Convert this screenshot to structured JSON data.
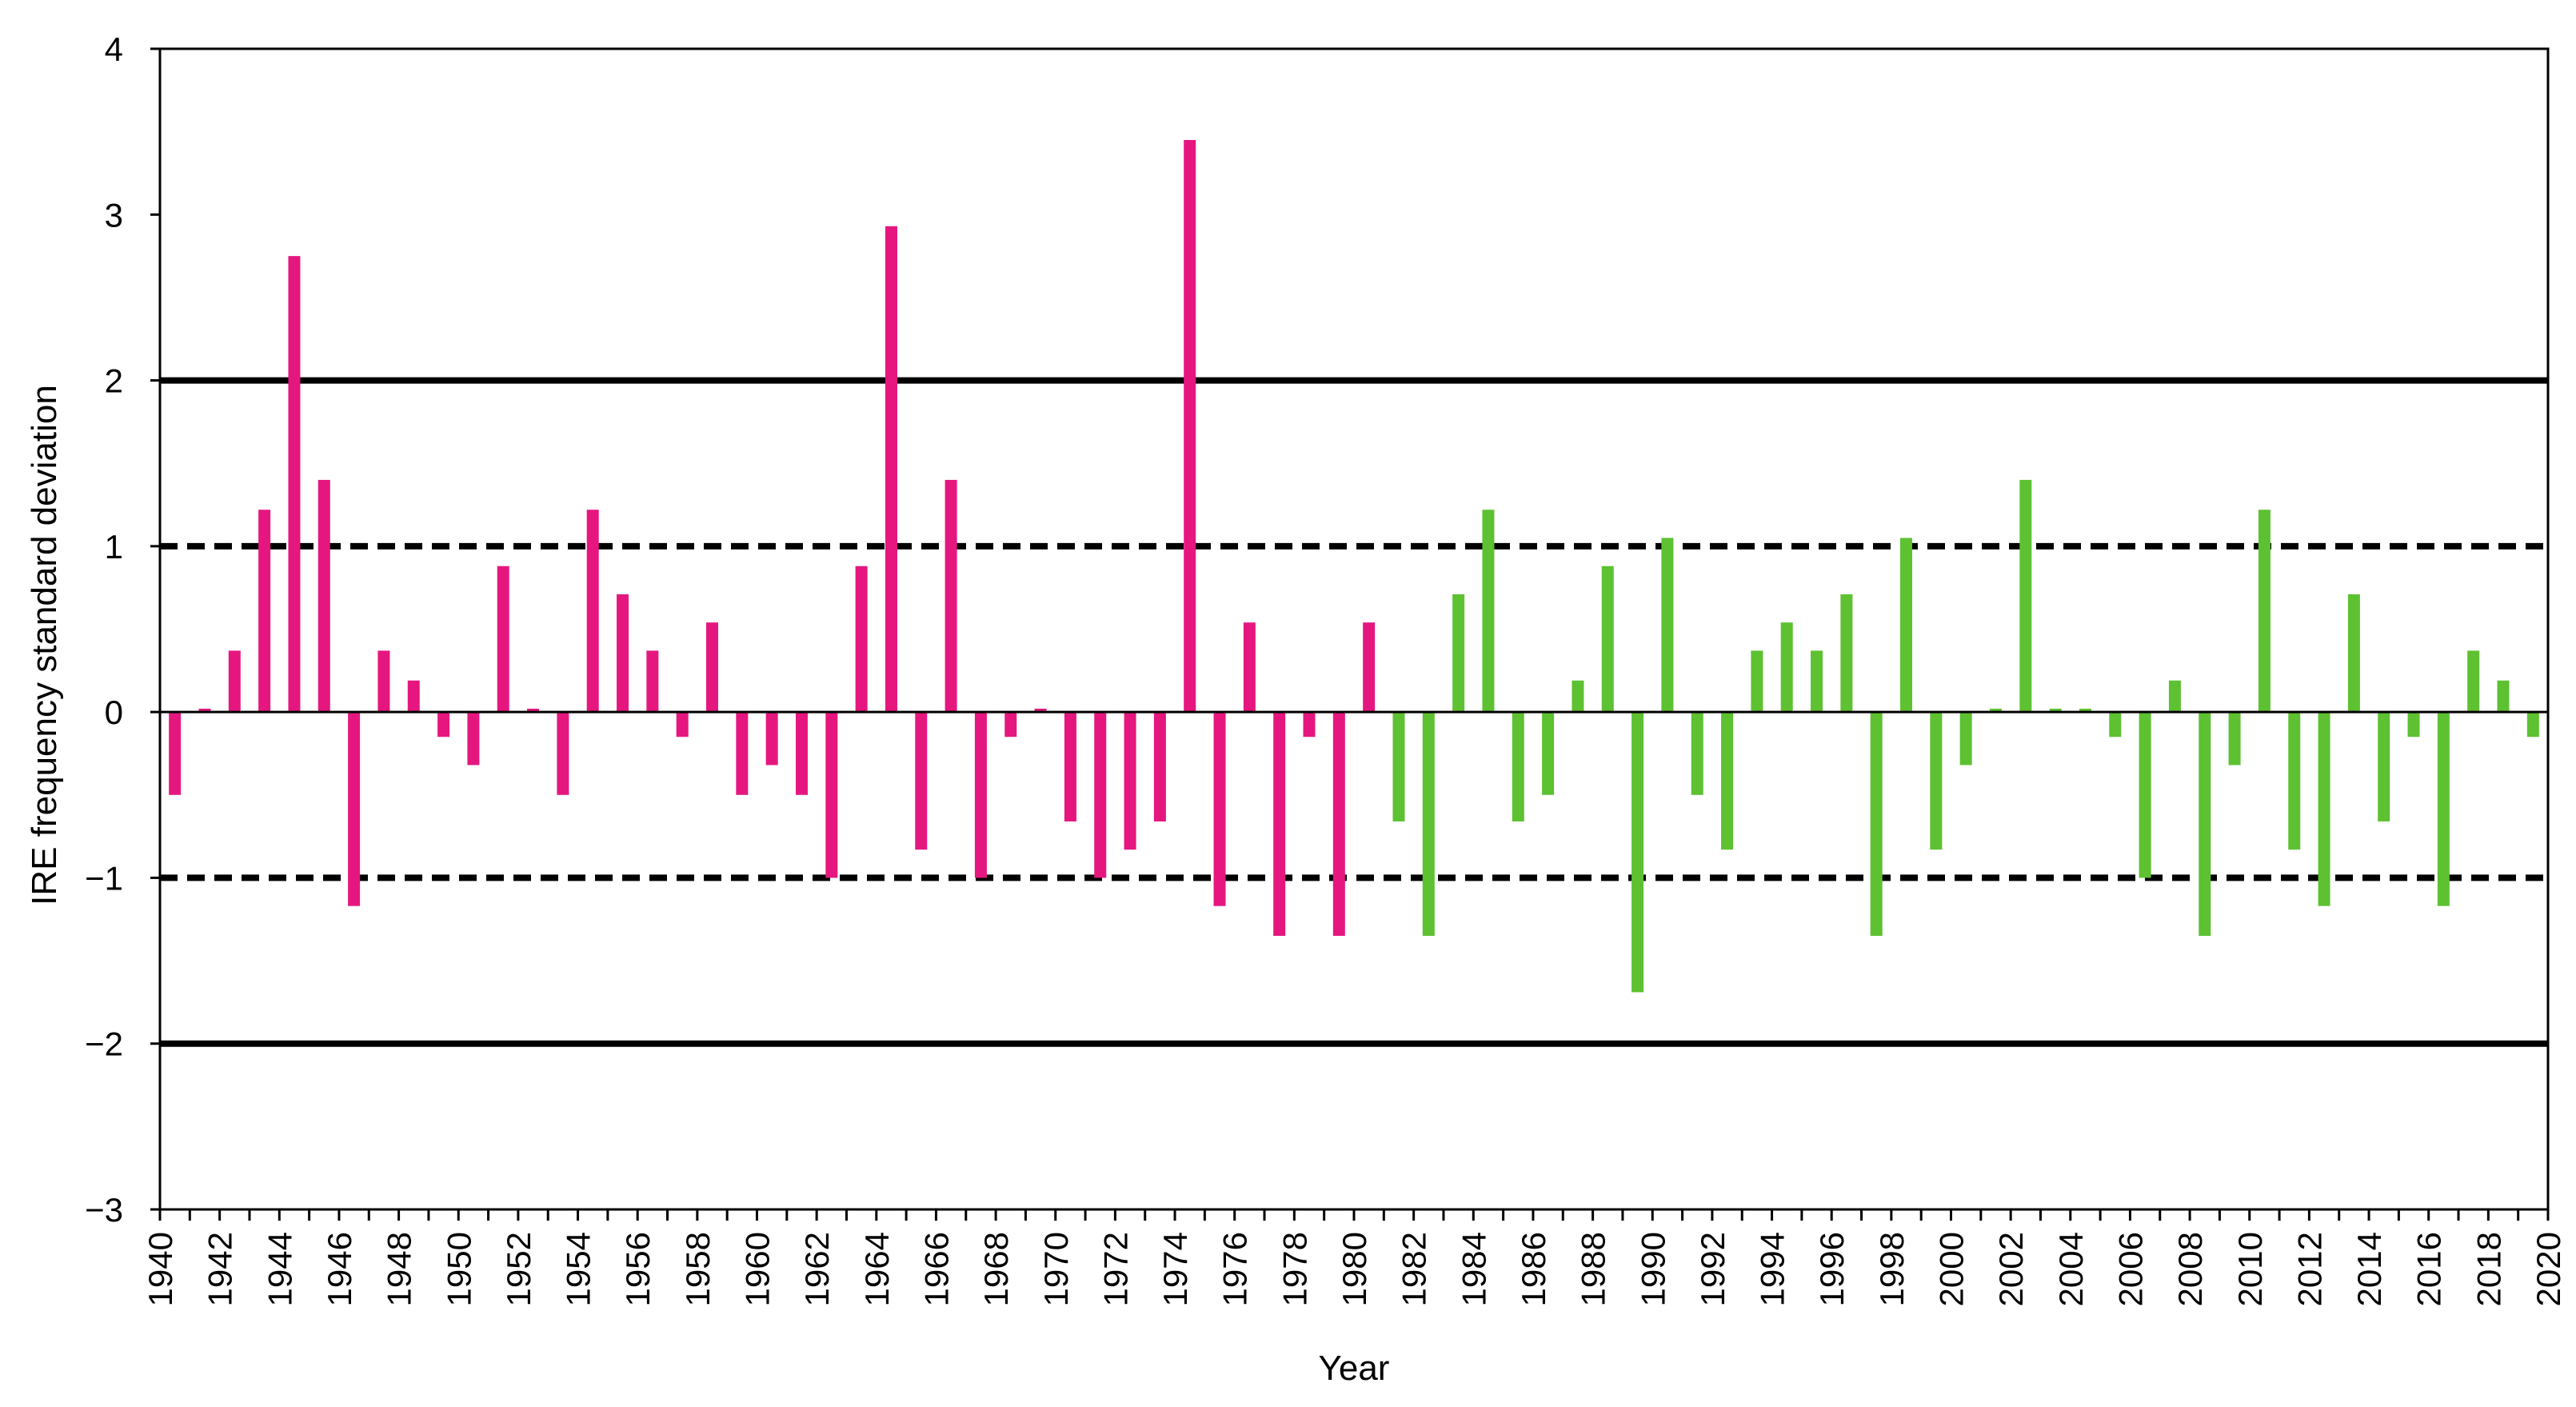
{
  "chart_data": {
    "type": "bar",
    "title": "",
    "xlabel": "Year",
    "ylabel": "IRE frequency standard deviation",
    "ylim": [
      -3,
      4
    ],
    "yticks": [
      "4",
      "3",
      "2",
      "1",
      "0",
      "−1",
      "−2",
      "−3"
    ],
    "ytick_values": [
      4,
      3,
      2,
      1,
      0,
      -1,
      -2,
      -3
    ],
    "xlim": [
      1940,
      2020
    ],
    "xticks": [
      "1940",
      "1942",
      "1944",
      "1946",
      "1948",
      "1950",
      "1952",
      "1954",
      "1956",
      "1958",
      "1960",
      "1962",
      "1964",
      "1966",
      "1968",
      "1970",
      "1972",
      "1974",
      "1976",
      "1978",
      "1980",
      "1982",
      "1984",
      "1986",
      "1988",
      "1990",
      "1992",
      "1994",
      "1996",
      "1998",
      "2000",
      "2002",
      "2004",
      "2006",
      "2008",
      "2010",
      "2012",
      "2014",
      "2016",
      "2018",
      "2020"
    ],
    "grid": false,
    "legend": "none",
    "reference_lines": [
      {
        "y": 2,
        "style": "solid"
      },
      {
        "y": 1,
        "style": "dashed"
      },
      {
        "y": -1,
        "style": "dashed"
      },
      {
        "y": -2,
        "style": "solid"
      }
    ],
    "series": [
      {
        "color": "#E5177F",
        "x": [
          1940,
          1941,
          1942,
          1943,
          1944,
          1945,
          1946,
          1947,
          1948,
          1949,
          1950,
          1951,
          1952,
          1953,
          1954,
          1955,
          1956,
          1957,
          1958,
          1959,
          1960,
          1961,
          1962,
          1963,
          1964,
          1965,
          1966,
          1967,
          1968,
          1969,
          1970,
          1971,
          1972,
          1973,
          1974,
          1975,
          1976,
          1977,
          1978,
          1979,
          1980
        ],
        "values": [
          -0.5,
          0.02,
          0.37,
          1.22,
          2.75,
          1.4,
          -1.17,
          0.37,
          0.19,
          -0.15,
          -0.32,
          0.88,
          0.02,
          -0.5,
          1.22,
          0.71,
          0.37,
          -0.15,
          0.54,
          -0.5,
          -0.32,
          -0.5,
          -1.0,
          0.88,
          2.93,
          -0.83,
          1.4,
          -1.0,
          -0.15,
          0.02,
          -0.66,
          -1.0,
          -0.83,
          -0.66,
          3.45,
          -1.17,
          0.54,
          -1.35,
          -0.15,
          -1.35,
          0.54
        ]
      },
      {
        "color": "#5DC132",
        "x": [
          1981,
          1982,
          1983,
          1984,
          1985,
          1986,
          1987,
          1988,
          1989,
          1990,
          1991,
          1992,
          1993,
          1994,
          1995,
          1996,
          1997,
          1998,
          1999,
          2000,
          2001,
          2002,
          2003,
          2004,
          2005,
          2006,
          2007,
          2008,
          2009,
          2010,
          2011,
          2012,
          2013,
          2014,
          2015,
          2016,
          2017,
          2018,
          2019
        ],
        "values": [
          -0.66,
          -1.35,
          0.71,
          1.22,
          -0.66,
          -0.5,
          0.19,
          0.88,
          -1.69,
          1.05,
          -0.5,
          -0.83,
          0.37,
          0.54,
          0.37,
          0.71,
          -1.35,
          1.05,
          -0.83,
          -0.32,
          0.02,
          1.4,
          0.02,
          0.02,
          -0.15,
          -1.0,
          0.19,
          -1.35,
          -0.32,
          1.22,
          -0.83,
          -1.17,
          0.71,
          -0.66,
          -0.15,
          -1.17,
          0.37,
          0.19,
          -0.15
        ]
      }
    ]
  }
}
